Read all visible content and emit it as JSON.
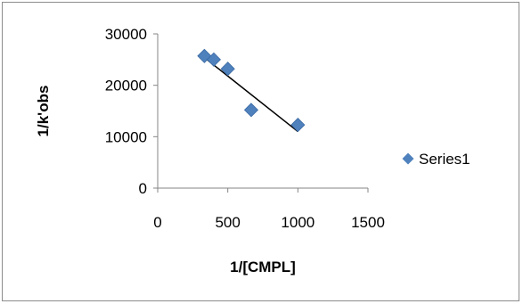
{
  "chart_data": {
    "type": "scatter",
    "xlabel": "1/[CMPL]",
    "ylabel": "1/k'obs",
    "xlim": [
      0,
      1500
    ],
    "ylim": [
      0,
      30000
    ],
    "x_ticks": [
      0,
      500,
      1000,
      1500
    ],
    "y_ticks": [
      0,
      10000,
      20000,
      30000
    ],
    "series": [
      {
        "name": "Series1",
        "color": "#4f81bd",
        "marker": "diamond",
        "points": [
          {
            "x": 333,
            "y": 25700
          },
          {
            "x": 400,
            "y": 25000
          },
          {
            "x": 500,
            "y": 23200
          },
          {
            "x": 667,
            "y": 15200
          },
          {
            "x": 1000,
            "y": 12300
          }
        ]
      }
    ],
    "trendline": {
      "type": "linear",
      "color": "#000000",
      "from": {
        "x": 333,
        "y": 25400
      },
      "to": {
        "x": 1000,
        "y": 11000
      }
    },
    "grid": false,
    "legend": "right"
  }
}
